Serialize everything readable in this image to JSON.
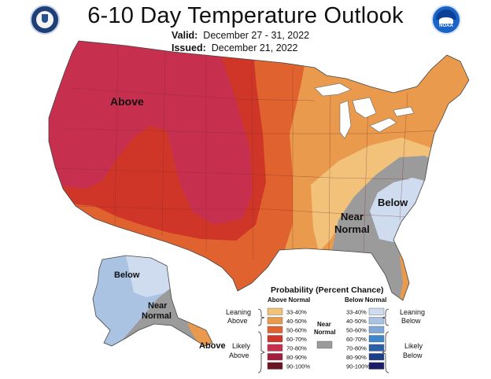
{
  "header": {
    "title": "6-10 Day Temperature Outlook",
    "valid_label": "Valid:",
    "valid_value": "December 27 - 31, 2022",
    "issued_label": "Issued:",
    "issued_value": "December 21, 2022"
  },
  "logos": {
    "left": {
      "icon": "us-department-of-commerce-seal-icon",
      "color": "#1e3f77"
    },
    "right": {
      "icon": "noaa-logo-icon",
      "color": "#1b63c6",
      "text": "NOAA"
    }
  },
  "map_labels": {
    "conus_above": "Above",
    "conus_near_normal": [
      "Near",
      "Normal"
    ],
    "conus_below": "Below",
    "alaska_below": "Below",
    "alaska_near_normal": [
      "Near",
      "Normal"
    ],
    "alaska_above": "Above"
  },
  "legend": {
    "title": "Probability (Percent Chance)",
    "above_header": "Above Normal",
    "below_header": "Below Normal",
    "leaning_above": [
      "Leaning",
      "Above"
    ],
    "likely_above": [
      "Likely",
      "Above"
    ],
    "leaning_below": [
      "Leaning",
      "Below"
    ],
    "likely_below": [
      "Likely",
      "Below"
    ],
    "near_normal": [
      "Near",
      "Normal"
    ],
    "near_normal_color": "#9b9b9b",
    "above": [
      {
        "label": "33-40%",
        "color": "#f2c27a"
      },
      {
        "label": "40-50%",
        "color": "#ea9a4c"
      },
      {
        "label": "50-60%",
        "color": "#e0632f"
      },
      {
        "label": "60-70%",
        "color": "#cf3628"
      },
      {
        "label": "70-80%",
        "color": "#c72f4f"
      },
      {
        "label": "80-90%",
        "color": "#a21e3e"
      },
      {
        "label": "90-100%",
        "color": "#6b1520"
      }
    ],
    "below": [
      {
        "label": "33-40%",
        "color": "#cfdcef"
      },
      {
        "label": "40-50%",
        "color": "#aac3e3"
      },
      {
        "label": "50-60%",
        "color": "#7fa8d8"
      },
      {
        "label": "60-70%",
        "color": "#3c86c9"
      },
      {
        "label": "70-80%",
        "color": "#2a5fa8"
      },
      {
        "label": "80-90%",
        "color": "#1b3e86"
      },
      {
        "label": "90-100%",
        "color": "#1a1e6a"
      }
    ]
  }
}
